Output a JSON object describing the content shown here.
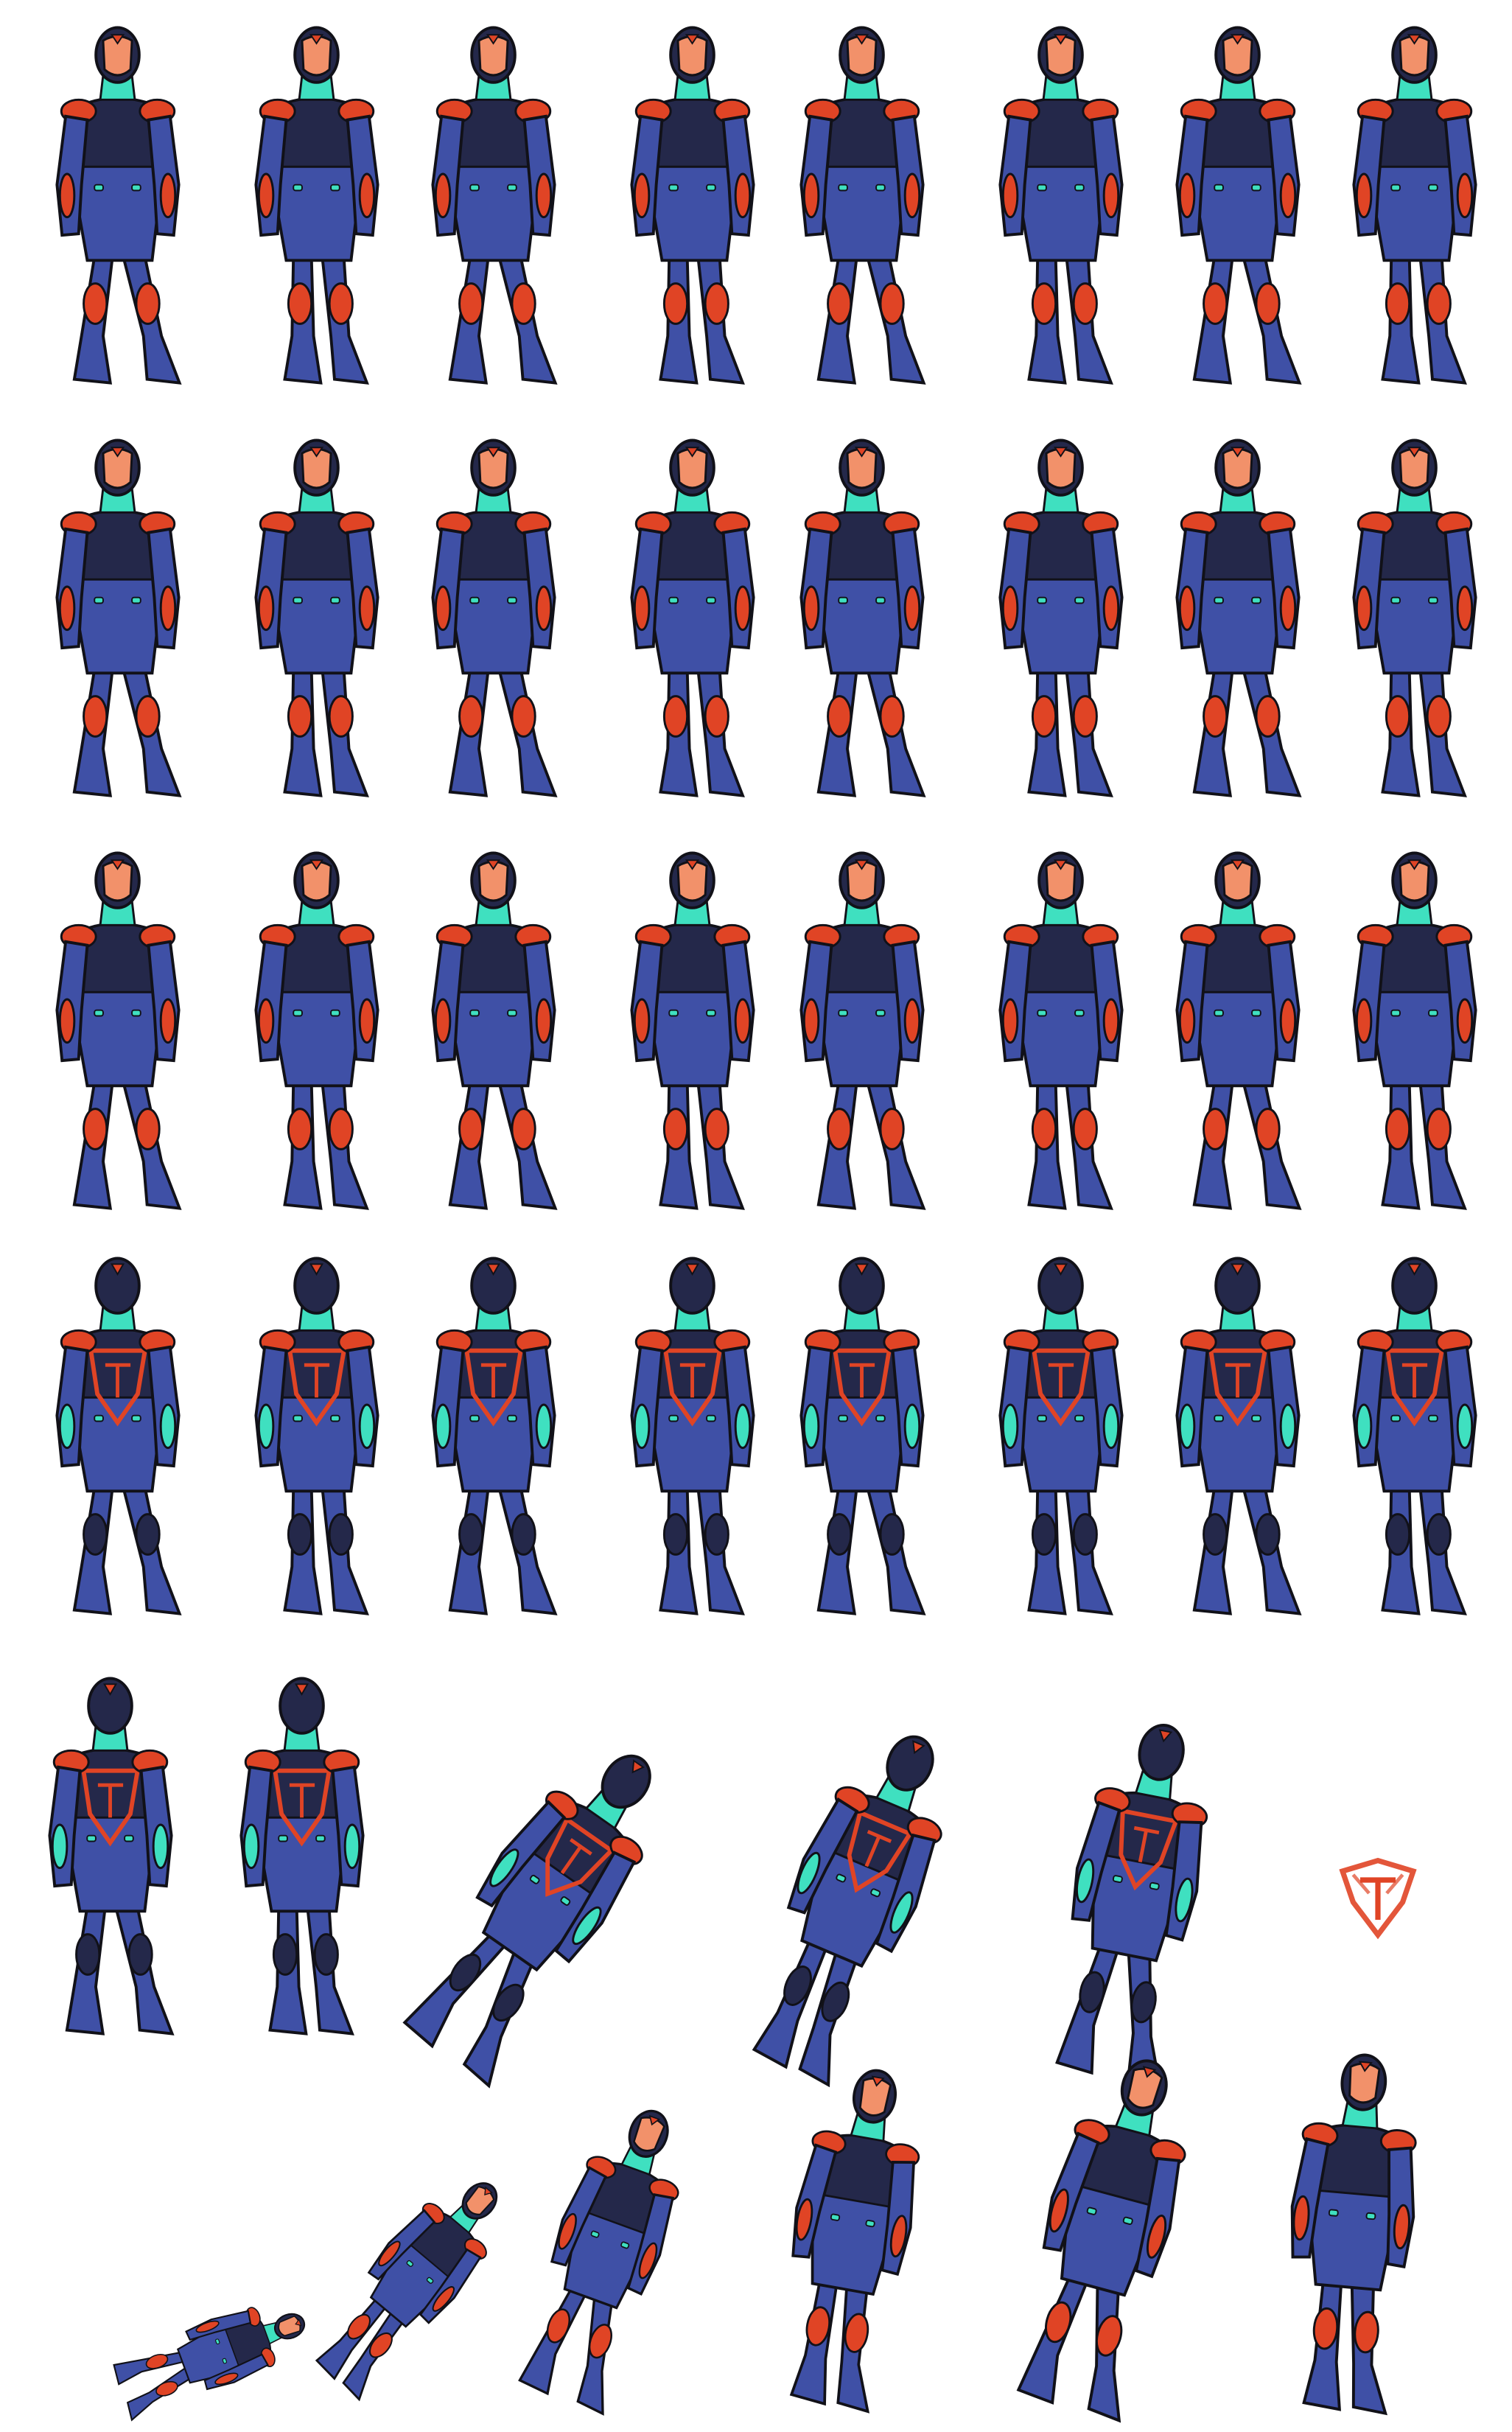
{
  "sheet": {
    "rows": [
      {
        "view": "side-walk-a",
        "frames": 8
      },
      {
        "view": "side-walk-b",
        "frames": 8
      },
      {
        "view": "front-walk",
        "frames": 8
      },
      {
        "view": "back-walk",
        "frames": 8
      },
      {
        "view": "back-idle-and-stumble",
        "frames": 5
      },
      {
        "view": "collapse-and-rise",
        "frames": 6
      }
    ],
    "emblem": "team-emblem-icon"
  },
  "palette": {
    "suit": "#3f50a6",
    "suit_dark": "#24284a",
    "armor": "#e04425",
    "glow": "#3fe0c0",
    "skin": "#f2916a",
    "outline": "#111118",
    "emblem": "#e04425"
  }
}
